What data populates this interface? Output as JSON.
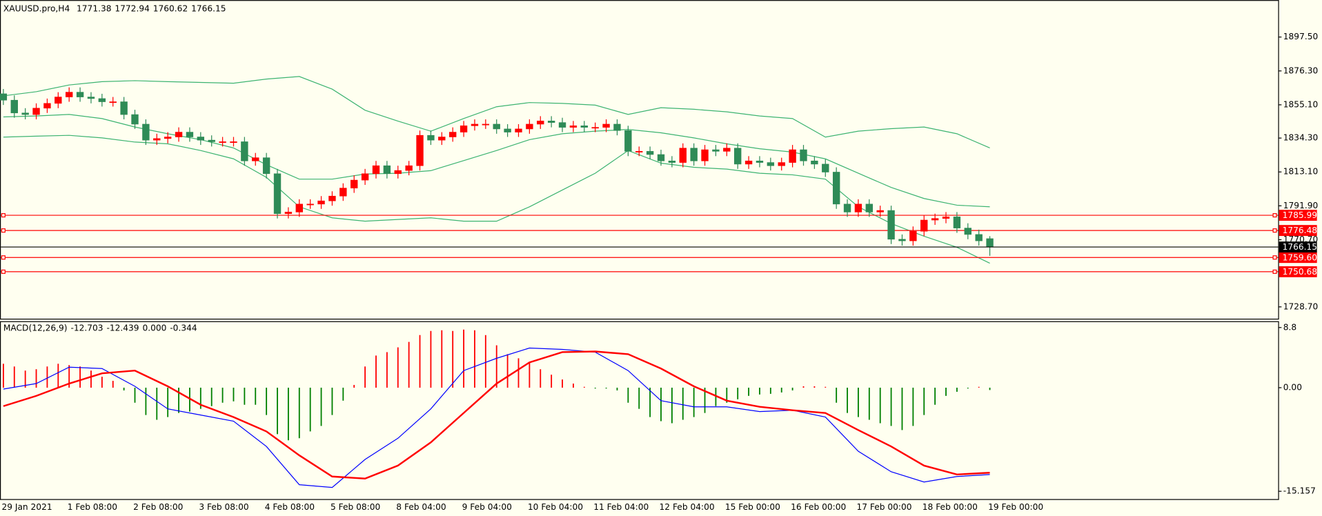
{
  "chart_data": [
    {
      "type": "candlestick",
      "title": "XAUUSD.pro,H4",
      "categories": [
        "29 Jan 2021",
        null,
        null,
        null,
        null,
        null,
        "1 Feb 08:00",
        null,
        null,
        null,
        null,
        null,
        "2 Feb 08:00",
        null,
        null,
        null,
        null,
        null,
        "3 Feb 08:00",
        null,
        null,
        null,
        null,
        null,
        "4 Feb 08:00",
        null,
        null,
        null,
        null,
        null,
        "5 Feb 08:00",
        null,
        null,
        null,
        null,
        null,
        "8 Feb 04:00",
        null,
        null,
        null,
        null,
        null,
        "9 Feb 04:00",
        null,
        null,
        null,
        null,
        null,
        "10 Feb 04:00",
        null,
        null,
        null,
        null,
        null,
        "11 Feb 04:00",
        null,
        null,
        null,
        null,
        null,
        "12 Feb 04:00",
        null,
        null,
        null,
        null,
        null,
        "15 Feb 00:00",
        null,
        null,
        null,
        null,
        null,
        "16 Feb 00:00",
        null,
        null,
        null,
        null,
        null,
        "17 Feb 00:00",
        null,
        null,
        null,
        null,
        null,
        "18 Feb 00:00",
        null,
        null,
        null,
        null,
        null,
        "19 Feb 00:00"
      ],
      "open": [
        1862,
        1858,
        1850,
        1849,
        1853,
        1856,
        1860,
        1863,
        1860,
        1859,
        1857,
        1857,
        1849,
        1843,
        1833,
        1834,
        1835,
        1838,
        1835,
        1833,
        1832,
        1832,
        1832,
        1820,
        1822,
        1812,
        1787,
        1788,
        1793,
        1793,
        1795,
        1798,
        1803,
        1808,
        1812,
        1817,
        1812,
        1814,
        1817,
        1836,
        1833,
        1835,
        1838,
        1842,
        1843,
        1843,
        1840,
        1838,
        1840,
        1843,
        1845,
        1844,
        1841,
        1842,
        1841,
        1841,
        1843,
        1839,
        1826,
        1826,
        1824,
        1820,
        1819,
        1828,
        1820,
        1827,
        1826,
        1828,
        1818,
        1820,
        1819,
        1817,
        1819,
        1827,
        1820,
        1818,
        1813,
        1793,
        1788,
        1793,
        1788,
        1789,
        1771,
        1770,
        1776,
        1783,
        1784,
        1785,
        1778,
        1774,
        1771.38
      ],
      "high": [
        1865,
        1861,
        1853,
        1856,
        1859,
        1863,
        1866,
        1866,
        1863,
        1862,
        1860,
        1860,
        1852,
        1846,
        1837,
        1838,
        1841,
        1841,
        1838,
        1836,
        1835,
        1835,
        1835,
        1825,
        1825,
        1815,
        1791,
        1796,
        1796,
        1798,
        1801,
        1806,
        1811,
        1815,
        1820,
        1820,
        1817,
        1820,
        1839,
        1839,
        1838,
        1841,
        1845,
        1846,
        1846,
        1846,
        1843,
        1843,
        1846,
        1848,
        1848,
        1847,
        1845,
        1845,
        1844,
        1846,
        1846,
        1842,
        1829,
        1829,
        1827,
        1823,
        1831,
        1831,
        1830,
        1830,
        1831,
        1831,
        1823,
        1823,
        1822,
        1822,
        1830,
        1830,
        1823,
        1821,
        1816,
        1796,
        1796,
        1796,
        1792,
        1792,
        1774,
        1779,
        1786,
        1787,
        1788,
        1788,
        1781,
        1777,
        1772.94
      ],
      "low": [
        1855,
        1847,
        1846,
        1846,
        1850,
        1853,
        1857,
        1857,
        1856,
        1854,
        1854,
        1846,
        1840,
        1830,
        1830,
        1831,
        1832,
        1832,
        1830,
        1829,
        1829,
        1829,
        1817,
        1817,
        1809,
        1784,
        1784,
        1785,
        1790,
        1790,
        1792,
        1795,
        1800,
        1805,
        1809,
        1809,
        1809,
        1811,
        1814,
        1830,
        1830,
        1832,
        1835,
        1839,
        1840,
        1837,
        1835,
        1835,
        1837,
        1840,
        1841,
        1838,
        1838,
        1838,
        1838,
        1838,
        1836,
        1823,
        1823,
        1821,
        1817,
        1816,
        1816,
        1817,
        1817,
        1823,
        1823,
        1815,
        1815,
        1816,
        1814,
        1814,
        1816,
        1817,
        1815,
        1810,
        1790,
        1785,
        1785,
        1785,
        1785,
        1768,
        1767,
        1767,
        1773,
        1780,
        1781,
        1775,
        1771,
        1767,
        1760.62
      ],
      "close": [
        1858,
        1850,
        1849,
        1853,
        1856,
        1860,
        1863,
        1860,
        1859,
        1857,
        1857,
        1849,
        1843,
        1833,
        1834,
        1835,
        1838,
        1835,
        1833,
        1832,
        1832,
        1832,
        1820,
        1822,
        1812,
        1787,
        1788,
        1793,
        1793,
        1795,
        1798,
        1803,
        1808,
        1812,
        1817,
        1812,
        1814,
        1817,
        1836,
        1833,
        1835,
        1838,
        1842,
        1843,
        1843,
        1840,
        1838,
        1840,
        1843,
        1845,
        1844,
        1841,
        1842,
        1841,
        1841,
        1843,
        1839,
        1826,
        1826,
        1824,
        1820,
        1819,
        1828,
        1820,
        1827,
        1826,
        1828,
        1818,
        1820,
        1819,
        1817,
        1819,
        1827,
        1820,
        1818,
        1813,
        1793,
        1788,
        1793,
        1788,
        1789,
        1771,
        1770,
        1776,
        1783,
        1784,
        1785,
        1778,
        1774,
        1770,
        1766.15
      ],
      "up_color": "#ff0000",
      "down_color": "#2e8b57",
      "bands": {
        "x": [
          0,
          3,
          6,
          9,
          12,
          15,
          18,
          21,
          24,
          27,
          30,
          33,
          36,
          39,
          42,
          45,
          48,
          51,
          54,
          57,
          60,
          63,
          66,
          69,
          72,
          75,
          78,
          81,
          84,
          87,
          90
        ],
        "series": [
          {
            "color": "#3cb371",
            "values": [
              1860.7,
              1863.3,
              1867.5,
              1869.6,
              1870.2,
              1869.6,
              1869.1,
              1868.6,
              1871.2,
              1872.8,
              1864.9,
              1851.7,
              1844.9,
              1838.6,
              1846.5,
              1853.9,
              1856.5,
              1856.0,
              1854.9,
              1849.1,
              1853.3,
              1852.3,
              1850.7,
              1848.1,
              1846.5,
              1834.9,
              1838.6,
              1840.2,
              1841.2,
              1837.0,
              1828.1
            ]
          },
          {
            "color": "#3cb371",
            "values": [
              1847.5,
              1848.1,
              1849.1,
              1846.5,
              1841.2,
              1837.0,
              1833.3,
              1828.1,
              1817.6,
              1808.6,
              1808.6,
              1811.8,
              1812.3,
              1813.9,
              1820.2,
              1826.5,
              1833.3,
              1837.0,
              1838.6,
              1839.7,
              1837.6,
              1834.4,
              1830.7,
              1827.6,
              1825.5,
              1821.3,
              1812.3,
              1803.4,
              1796.5,
              1792.3,
              1791.3
            ]
          },
          {
            "color": "#3cb371",
            "values": [
              1834.9,
              1835.5,
              1836.0,
              1834.4,
              1831.8,
              1830.7,
              1826.5,
              1821.3,
              1809.7,
              1791.3,
              1784.4,
              1782.3,
              1783.4,
              1784.4,
              1782.3,
              1782.3,
              1791.3,
              1801.8,
              1812.3,
              1826.5,
              1818.6,
              1816.0,
              1814.9,
              1812.3,
              1811.3,
              1808.6,
              1791.3,
              1780.8,
              1772.9,
              1766.0,
              1756.0
            ]
          }
        ]
      },
      "levels": [
        {
          "value": 1785.99
        },
        {
          "value": 1776.48
        },
        {
          "value": {
            "value": 1759.6,
            "label": "1759.60"
          }
        },
        {
          "value": 1750.68
        }
      ],
      "level_color": "#ff0000",
      "last_price_color": "#000000",
      "ylim": [
        1721.3,
        1920.1
      ],
      "yticks": [
        {
          "value": 1897.5,
          "label": "1897.50"
        },
        {
          "value": 1876.3,
          "label": "1876.30"
        },
        {
          "value": 1855.1,
          "label": "1855.10"
        },
        {
          "value": 1834.3,
          "label": "1834.30"
        },
        {
          "value": 1813.1,
          "label": "1813.10"
        },
        {
          "value": 1791.9,
          "label": "1791.90"
        },
        {
          "value": 1770.7,
          "label": "1770.70"
        },
        {
          "value": 1728.7,
          "label": "1728.70"
        }
      ]
    },
    {
      "type": "macd",
      "title": "MACD(12,26,9)",
      "legend_values": [
        -12.703,
        -12.439,
        {
          "value": 0,
          "label": "0.000"
        },
        -0.344
      ],
      "histogram": [
        3.5,
        3.1,
        2.5,
        2.7,
        3.1,
        3.5,
        3.3,
        3.1,
        2.5,
        1.6,
        1.0,
        -0.4,
        -2.2,
        -4.0,
        -4.7,
        -4.3,
        -3.7,
        -3.5,
        -3.1,
        -2.7,
        -2.2,
        -2.0,
        -2.5,
        -2.5,
        -4.0,
        -6.8,
        -7.7,
        -7.4,
        -6.4,
        -5.6,
        -4.0,
        -1.9,
        0.4,
        3.1,
        4.7,
        5.2,
        5.9,
        6.7,
        7.7,
        8.3,
        8.4,
        8.3,
        8.5,
        8.4,
        7.7,
        6.2,
        4.9,
        4.3,
        3.7,
        2.7,
        1.9,
        1.2,
        0.6,
        0.1,
        -0.1,
        -0.1,
        -0.4,
        -2.2,
        -3.1,
        -4.3,
        -4.9,
        -5.2,
        -4.7,
        -4.3,
        -3.7,
        -2.7,
        -2.2,
        -1.7,
        -1.2,
        -1.0,
        -0.9,
        -0.7,
        -0.4,
        0.2,
        0.2,
        0.1,
        -2.2,
        -3.7,
        -4.3,
        -4.7,
        -5.2,
        -5.6,
        -6.2,
        -5.6,
        -4.0,
        -2.5,
        -1.2,
        -0.6,
        -0.1,
        0.1,
        -0.344
      ],
      "pos_color": "#ff0000",
      "neg_color": "#008000",
      "x": [
        0,
        3,
        6,
        9,
        12,
        15,
        18,
        21,
        24,
        27,
        30,
        33,
        36,
        39,
        42,
        45,
        48,
        51,
        54,
        57,
        60,
        63,
        66,
        69,
        72,
        75,
        78,
        81,
        84,
        87,
        90
      ],
      "series": [
        {
          "color": "#0000ff",
          "width": 1,
          "values": [
            -0.2,
            0.6,
            3.0,
            2.8,
            0.2,
            -3.1,
            -4.0,
            -4.9,
            -8.6,
            -14.2,
            -14.6,
            -10.5,
            -7.4,
            -3.1,
            2.5,
            4.3,
            5.8,
            5.6,
            5.2,
            2.5,
            -1.9,
            -2.8,
            -2.8,
            -3.5,
            -3.3,
            -4.3,
            -9.3,
            -12.3,
            -13.8,
            -13.0,
            -12.703
          ]
        },
        {
          "color": "#ff0000",
          "width": 2,
          "values": [
            -2.7,
            -1.2,
            0.6,
            2.1,
            2.5,
            0.2,
            -2.5,
            -4.3,
            -6.4,
            -9.9,
            -13.0,
            -13.3,
            -11.4,
            -8.0,
            -3.7,
            0.6,
            3.7,
            5.2,
            5.3,
            4.9,
            2.8,
            0.2,
            -1.9,
            -2.8,
            -3.3,
            -3.7,
            -6.2,
            -8.6,
            -11.4,
            -12.7,
            -12.439
          ]
        }
      ],
      "ylim": [
        -16.3,
        9.6
      ],
      "yticks": [
        8.8,
        {
          "value": 0,
          "label": "0.00"
        },
        -15.157
      ]
    }
  ]
}
